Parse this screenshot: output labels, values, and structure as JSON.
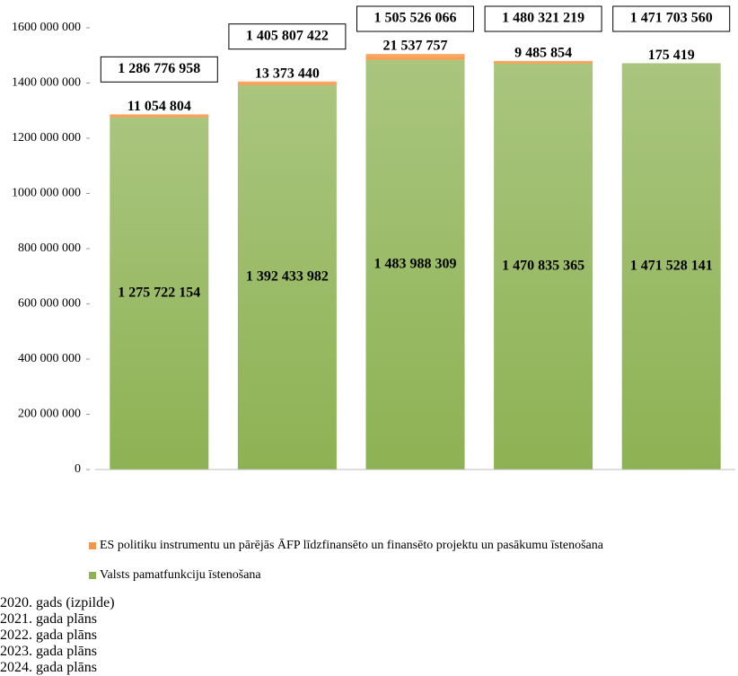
{
  "chart_data": {
    "type": "stacked-bar",
    "categories": [
      "2020. gads (izpilde)",
      "2021. gada plāns",
      "2022. gada plāns",
      "2023. gada plāns",
      "2024. gada plāns"
    ],
    "series": [
      {
        "name": "Valsts pamatfunkciju īstenošana",
        "color": "#8db253",
        "values": [
          1275722154,
          1392433982,
          1483988309,
          1470835365,
          1471528141
        ],
        "value_labels": [
          "1 275 722 154",
          "1 392 433 982",
          "1 483 988 309",
          "1 470 835 365",
          "1 471 528 141"
        ]
      },
      {
        "name": "ES politiku instrumentu un pārējās ĀFP līdzfinansēto un finansēto projektu un pasākumu īstenošana",
        "color": "#f79646",
        "values": [
          11054804,
          13373440,
          21537757,
          9485854,
          175419
        ],
        "value_labels": [
          "11 054 804",
          "13 373 440",
          "21 537 757",
          "9 485 854",
          "175 419"
        ]
      }
    ],
    "totals": {
      "values": [
        1286776958,
        1405807422,
        1505526066,
        1480321219,
        1471703560
      ],
      "value_labels": [
        "1 286 776 958",
        "1 405 807 422",
        "1 505 526 066",
        "1 480 321 219",
        "1 471 703 560"
      ]
    },
    "ylim": [
      0,
      1600000000
    ],
    "yticks": [
      0,
      {
        "value": 200000000,
        "label": "200 000 000"
      },
      {
        "value": 400000000,
        "label": "400 000 000"
      },
      {
        "value": 600000000,
        "label": "600 000 000"
      },
      {
        "value": 800000000,
        "label": "800 000 000"
      },
      {
        "value": 1000000000,
        "label": "1000 000 000"
      },
      {
        "value": 1200000000,
        "label": "1200 000 000"
      },
      {
        "value": 1400000000,
        "label": "1400 000 000"
      },
      {
        "value": 1600000000,
        "label": "1600 000 000"
      }
    ],
    "grid": false
  }
}
